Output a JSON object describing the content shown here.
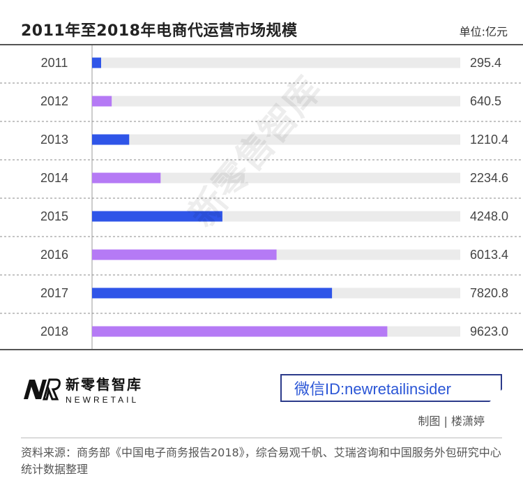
{
  "title": "2011年至2018年电商代运营市场规模",
  "unit": "单位:亿元",
  "watermark": "新零售智库",
  "colors": {
    "blue": "#2f55e8",
    "purple": "#b57af5",
    "track": "#ebebeb",
    "grid": "#888888"
  },
  "chart_data": {
    "type": "bar",
    "orientation": "horizontal",
    "categories": [
      "2011",
      "2012",
      "2013",
      "2014",
      "2015",
      "2016",
      "2017",
      "2018"
    ],
    "values": [
      295.4,
      640.5,
      1210.4,
      2234.6,
      4248.0,
      6013.4,
      7820.8,
      9623.0
    ],
    "value_labels": [
      "295.4",
      "640.5",
      "1210.4",
      "2234.6",
      "4248.0",
      "6013.4",
      "7820.8",
      "9623.0"
    ],
    "xlim": [
      0,
      12000
    ],
    "bar_colors": [
      "#2f55e8",
      "#b57af5",
      "#2f55e8",
      "#b57af5",
      "#2f55e8",
      "#b57af5",
      "#2f55e8",
      "#b57af5"
    ],
    "grid": "horizontal-dashed"
  },
  "logo": {
    "cn": "新零售智库",
    "en": "NEWRETAIL"
  },
  "wechat": "微信ID:newretailinsider",
  "credit": "制图 | 楼潇婷",
  "source": "资料来源：商务部《中国电子商务报告2018》，综合易观千帆、艾瑞咨询和中国服务外包研究中心统计数据整理"
}
